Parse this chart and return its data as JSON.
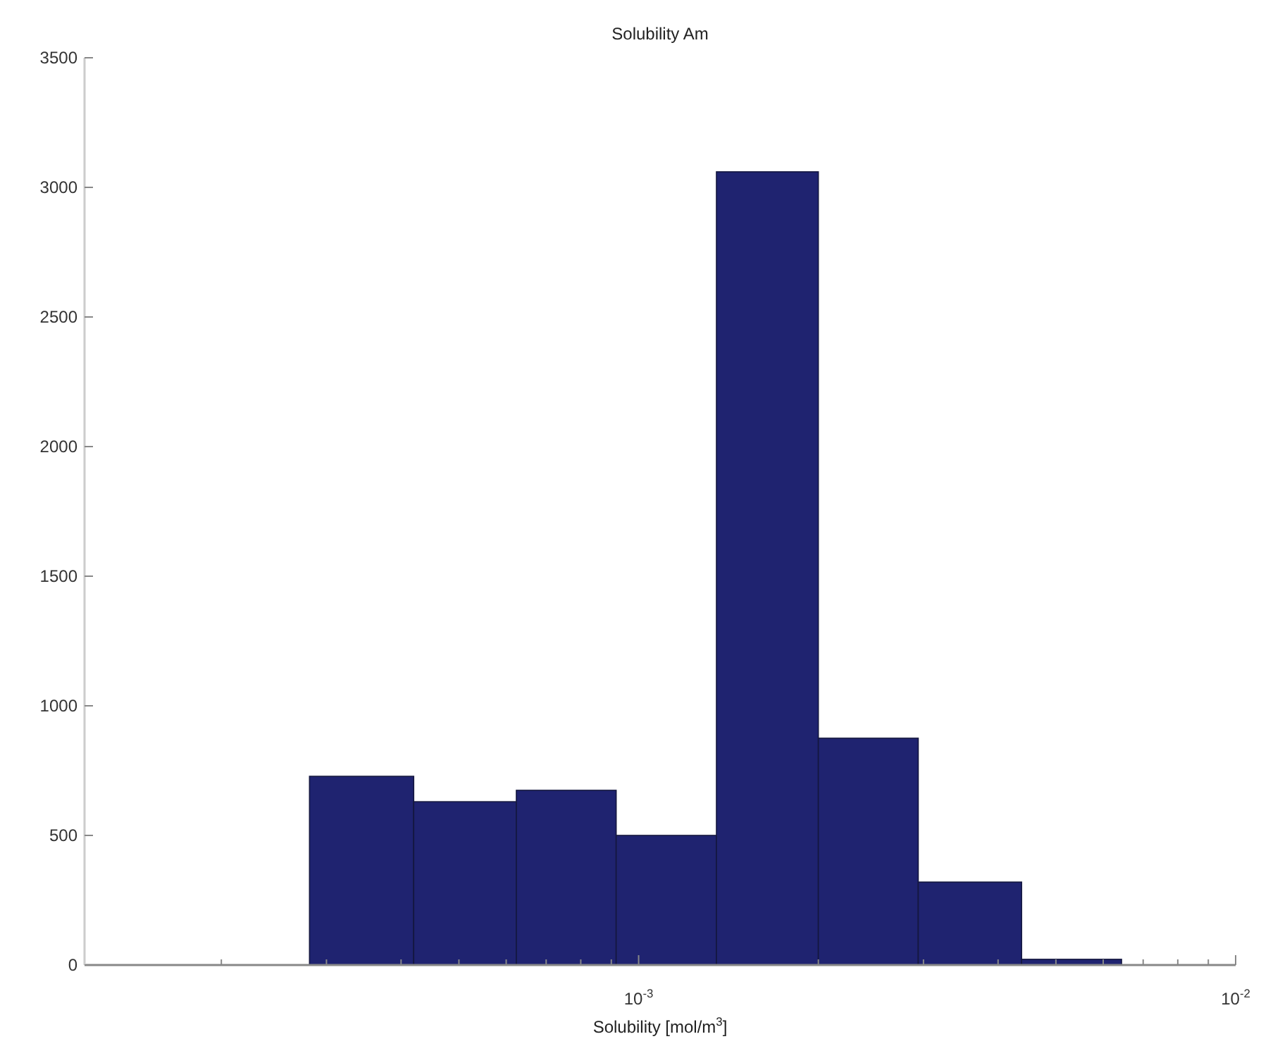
{
  "chart_data": {
    "type": "histogram",
    "title": "Solubility Am",
    "xlabel": "Solubility [mol/m$^{3}$]",
    "bins": [
      0.000281,
      0.00042,
      0.000624,
      0.000917,
      0.00135,
      0.002,
      0.00294,
      0.00438,
      0.00644
    ],
    "values": [
      728,
      630,
      674,
      500,
      3060,
      875,
      320,
      22
    ],
    "color": "#1f2370",
    "log": "x",
    "xlim": [
      0.000118,
      0.01
    ],
    "xticks": [
      {
        "value": 0.0002,
        "label": null
      },
      {
        "value": 0.0003,
        "label": null
      },
      {
        "value": 0.0004,
        "label": null
      },
      {
        "value": 0.0005,
        "label": null
      },
      {
        "value": 0.0006,
        "label": null
      },
      {
        "value": 0.0007,
        "label": null
      },
      {
        "value": 0.0008,
        "label": null
      },
      {
        "value": 0.0009,
        "label": null
      },
      {
        "value": 0.001,
        "label": "10$^{-3}$"
      },
      {
        "value": 0.002,
        "label": null
      },
      {
        "value": 0.003,
        "label": null
      },
      {
        "value": 0.004,
        "label": null
      },
      {
        "value": 0.005,
        "label": null
      },
      {
        "value": 0.006,
        "label": null
      },
      {
        "value": 0.007,
        "label": null
      },
      {
        "value": 0.008,
        "label": null
      },
      {
        "value": 0.009,
        "label": null
      },
      {
        "value": 0.01,
        "label": "10$^{-2}$"
      }
    ],
    "ylim": [
      0,
      3500
    ],
    "yticks": [
      0,
      500,
      1000,
      1500,
      2000,
      2500,
      3000,
      3500
    ]
  }
}
